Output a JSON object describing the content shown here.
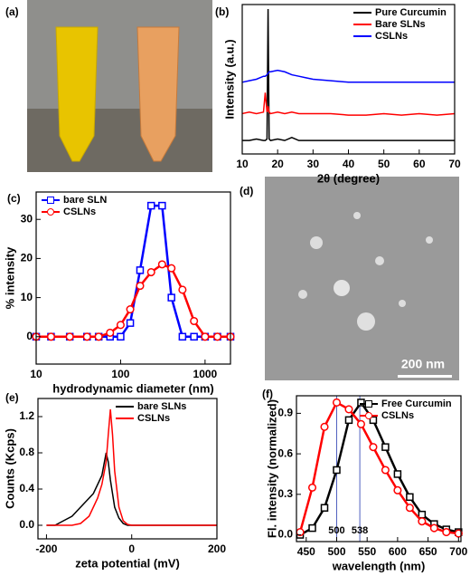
{
  "photos": [
    {
      "label": "(a)"
    },
    {
      "label": "(d)",
      "scale_bar": "200 nm"
    }
  ],
  "chart_data": [
    {
      "type": "line",
      "label": "(b)",
      "xlabel": "2θ (degree)",
      "ylabel": "Intensity (a.u.)",
      "x": [
        10,
        12,
        14,
        16,
        16.5,
        17,
        17.3,
        17.6,
        18,
        20,
        22,
        24,
        26,
        28,
        30,
        35,
        40,
        45,
        50,
        55,
        60,
        65,
        70
      ],
      "series": [
        {
          "name": "Pure Curcumin",
          "color": "#000000",
          "values": [
            9,
            9,
            10,
            9,
            9,
            10,
            97,
            10,
            9,
            10,
            9,
            11,
            9,
            9,
            9,
            9,
            9,
            9,
            9,
            9,
            9,
            9,
            9
          ]
        },
        {
          "name": "Bare SLNs",
          "color": "#ff0000",
          "values": [
            27,
            28,
            27,
            28,
            41,
            28,
            32,
            28,
            27,
            28,
            27,
            28,
            27,
            27,
            27,
            27,
            26,
            26,
            27,
            26,
            27,
            26,
            27
          ]
        },
        {
          "name": "CSLNs",
          "color": "#0000ff",
          "values": [
            48,
            49,
            50,
            52,
            52,
            53,
            54,
            55,
            55,
            56,
            55,
            53,
            52,
            51,
            50,
            49,
            48,
            48,
            48,
            48,
            48,
            48,
            48
          ]
        }
      ],
      "xlim": [
        10,
        70
      ],
      "xticks": [
        10,
        20,
        30,
        40,
        50,
        60,
        70
      ],
      "ylim": [
        0,
        100
      ],
      "yticks": [],
      "legend": "upper right"
    },
    {
      "type": "line",
      "label": "(c)",
      "xlabel": "hydrodynamic diameter (nm)",
      "ylabel": "% intensity",
      "xscale": "log",
      "x": [
        10,
        15,
        25,
        40,
        55,
        75,
        100,
        130,
        170,
        230,
        310,
        400,
        540,
        740,
        1000,
        1400,
        2000
      ],
      "series": [
        {
          "name": "bare SLN",
          "color": "#0000ff",
          "marker": "square",
          "values": [
            0,
            0,
            0,
            0,
            0,
            0,
            0,
            3.5,
            17,
            33.5,
            33.5,
            10,
            0,
            0,
            0,
            0,
            0
          ]
        },
        {
          "name": "CSLNs",
          "color": "#ff0000",
          "marker": "circle",
          "values": [
            0,
            0,
            0,
            0,
            0,
            1,
            3,
            7,
            13,
            16.5,
            18.5,
            17.5,
            12,
            4,
            0,
            0,
            0
          ]
        }
      ],
      "xlim": [
        10,
        2000
      ],
      "xticks": [
        10,
        100,
        1000
      ],
      "ylim": [
        -7,
        37
      ],
      "yticks": [
        0,
        10,
        20,
        30
      ],
      "legend": "upper left"
    },
    {
      "type": "line",
      "label": "(e)",
      "xlabel": "zeta potential (mV)",
      "ylabel": "Counts (Kcps)",
      "x": [
        -200,
        -180,
        -160,
        -140,
        -120,
        -100,
        -90,
        -80,
        -70,
        -60,
        -55,
        -50,
        -45,
        -40,
        -30,
        -20,
        -10,
        0,
        100,
        200
      ],
      "series": [
        {
          "name": "bare SLNs",
          "color": "#000000",
          "values": [
            0,
            0,
            0.05,
            0.1,
            0.2,
            0.3,
            0.35,
            0.45,
            0.55,
            0.8,
            0.7,
            0.5,
            0.35,
            0.2,
            0.08,
            0.02,
            0,
            0,
            0,
            0
          ]
        },
        {
          "name": "CSLNs",
          "color": "#ff0000",
          "values": [
            0,
            0,
            0,
            0,
            0.02,
            0.1,
            0.2,
            0.3,
            0.45,
            0.7,
            1.0,
            1.28,
            1.0,
            0.6,
            0.2,
            0.05,
            0.01,
            0,
            0,
            0
          ]
        }
      ],
      "xlim": [
        -220,
        200
      ],
      "xticks": [
        -200,
        0,
        200
      ],
      "ylim": [
        -0.15,
        1.4
      ],
      "yticks": [
        {
          "value": 0,
          "label": "0.0"
        },
        0.4,
        0.8,
        1.2
      ],
      "legend": "upper right"
    },
    {
      "type": "line",
      "label": "(f)",
      "xlabel": "wavelength (nm)",
      "ylabel": "Fl. intensity (normalized)",
      "x": [
        440,
        460,
        480,
        500,
        520,
        540,
        560,
        580,
        600,
        620,
        640,
        660,
        680,
        700
      ],
      "series": [
        {
          "name": "Free Curcumin",
          "color": "#000000",
          "marker": "square",
          "values": [
            0,
            0.05,
            0.2,
            0.48,
            0.85,
            0.98,
            0.85,
            0.65,
            0.45,
            0.28,
            0.15,
            0.08,
            0.04,
            0.02
          ]
        },
        {
          "name": "CSLNs",
          "color": "#ff0000",
          "marker": "circle",
          "values": [
            0.02,
            0.35,
            0.8,
            0.98,
            0.93,
            0.82,
            0.65,
            0.48,
            0.33,
            0.2,
            0.1,
            0.05,
            0.02,
            0.01
          ]
        }
      ],
      "xlim": [
        434,
        704
      ],
      "xticks": [
        450,
        500,
        550,
        600,
        650,
        700
      ],
      "ylim": [
        -0.05,
        1.03
      ],
      "yticks": [
        {
          "value": 0,
          "label": "0.0"
        },
        0.3,
        0.6,
        0.9
      ],
      "annotations": [
        500,
        538
      ],
      "legend": "upper right"
    }
  ]
}
